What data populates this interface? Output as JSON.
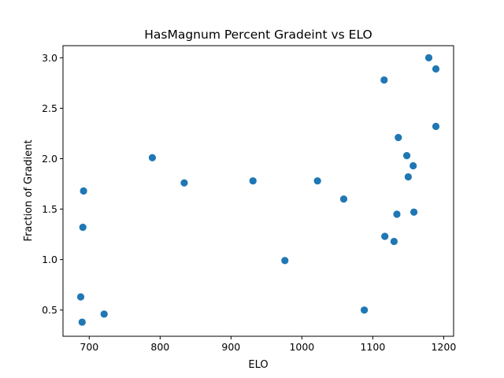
{
  "chart_data": {
    "type": "scatter",
    "title": "HasMagnum Percent Gradeint vs ELO",
    "xlabel": "ELO",
    "ylabel": "Fraction of Gradient",
    "xlim": [
      663,
      1214
    ],
    "ylim": [
      0.24,
      3.12
    ],
    "xticks": [
      700,
      800,
      900,
      1000,
      1100,
      1200
    ],
    "yticks": [
      0.5,
      1.0,
      1.5,
      2.0,
      2.5,
      3.0
    ],
    "xtick_labels": [
      "700",
      "800",
      "900",
      "1000",
      "1100",
      "1200"
    ],
    "ytick_labels": [
      "0.5",
      "1.0",
      "1.5",
      "2.0",
      "2.5",
      "3.0"
    ],
    "grid": false,
    "marker_color": "#1f77b4",
    "points": [
      {
        "x": 688,
        "y": 0.63
      },
      {
        "x": 690,
        "y": 0.38
      },
      {
        "x": 691,
        "y": 1.32
      },
      {
        "x": 692,
        "y": 1.68
      },
      {
        "x": 721,
        "y": 0.46
      },
      {
        "x": 789,
        "y": 2.01
      },
      {
        "x": 834,
        "y": 1.76
      },
      {
        "x": 931,
        "y": 1.78
      },
      {
        "x": 976,
        "y": 0.99
      },
      {
        "x": 1022,
        "y": 1.78
      },
      {
        "x": 1059,
        "y": 1.6
      },
      {
        "x": 1088,
        "y": 0.5
      },
      {
        "x": 1116,
        "y": 2.78
      },
      {
        "x": 1117,
        "y": 1.23
      },
      {
        "x": 1130,
        "y": 1.18
      },
      {
        "x": 1134,
        "y": 1.45
      },
      {
        "x": 1136,
        "y": 2.21
      },
      {
        "x": 1148,
        "y": 2.03
      },
      {
        "x": 1150,
        "y": 1.82
      },
      {
        "x": 1157,
        "y": 1.93
      },
      {
        "x": 1158,
        "y": 1.47
      },
      {
        "x": 1179,
        "y": 3.0
      },
      {
        "x": 1189,
        "y": 2.89
      },
      {
        "x": 1189,
        "y": 2.32
      }
    ]
  }
}
